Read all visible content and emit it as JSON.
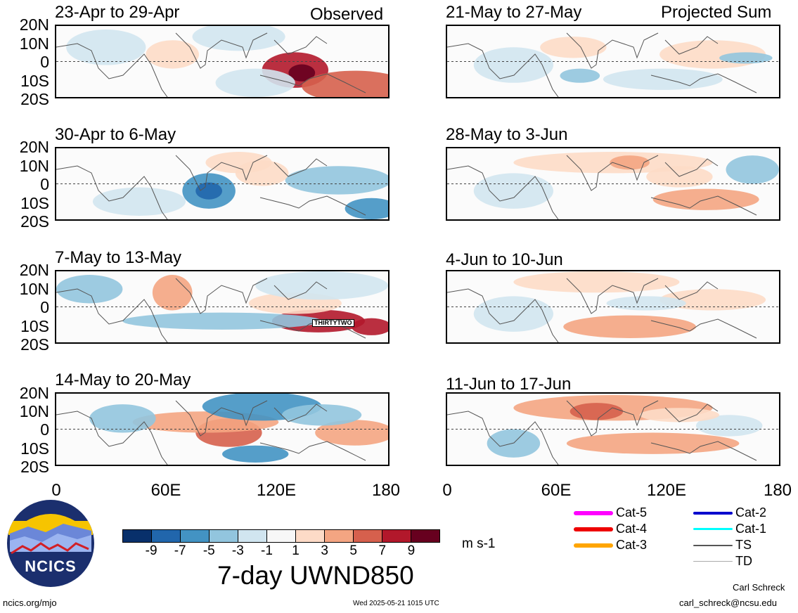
{
  "panels": [
    {
      "title": "23-Apr to 29-Apr",
      "tag": "Observed"
    },
    {
      "title": "30-Apr to 6-May",
      "tag": ""
    },
    {
      "title": "7-May to 13-May",
      "tag": ""
    },
    {
      "title": "14-May to 20-May",
      "tag": ""
    },
    {
      "title": "21-May to 27-May",
      "tag": "Projected Sum"
    },
    {
      "title": "28-May to 3-Jun",
      "tag": ""
    },
    {
      "title": "4-Jun to 10-Jun",
      "tag": ""
    },
    {
      "title": "11-Jun to 17-Jun",
      "tag": ""
    }
  ],
  "storm_label": "THIRTYTWO",
  "lat_labels": [
    "20N",
    "10N",
    "0",
    "10S",
    "20S"
  ],
  "lon_labels": [
    "0",
    "60E",
    "120E",
    "180"
  ],
  "colorbar": {
    "colors": [
      "#08306b",
      "#2166ac",
      "#4393c3",
      "#92c5de",
      "#d1e5f0",
      "#f7f7f7",
      "#fddbc7",
      "#f4a582",
      "#d6604d",
      "#b2182b",
      "#67001f"
    ],
    "ticks": [
      "-9",
      "-7",
      "-5",
      "-3",
      "-1",
      "1",
      "3",
      "5",
      "7",
      "9"
    ],
    "units": "m s-1"
  },
  "main_title": "7-day UWND850",
  "legend": [
    {
      "label": "Cat-5",
      "color": "#ff00ff"
    },
    {
      "label": "Cat-4",
      "color": "#ee0000"
    },
    {
      "label": "Cat-3",
      "color": "#ffa500"
    },
    {
      "label": "Cat-2",
      "color": "#0000cd"
    },
    {
      "label": "Cat-1",
      "color": "#00ffff"
    },
    {
      "label": "TS",
      "color": "#555555"
    },
    {
      "label": "TD",
      "color": "#aaaaaa"
    }
  ],
  "logo": {
    "text": "NCICS"
  },
  "footer": {
    "url": "ncics.org/mjo",
    "timestamp": "Wed 2025-05-21 1015 UTC",
    "author": "Carl Schreck",
    "email": "carl_schreck@ncsu.edu"
  }
}
